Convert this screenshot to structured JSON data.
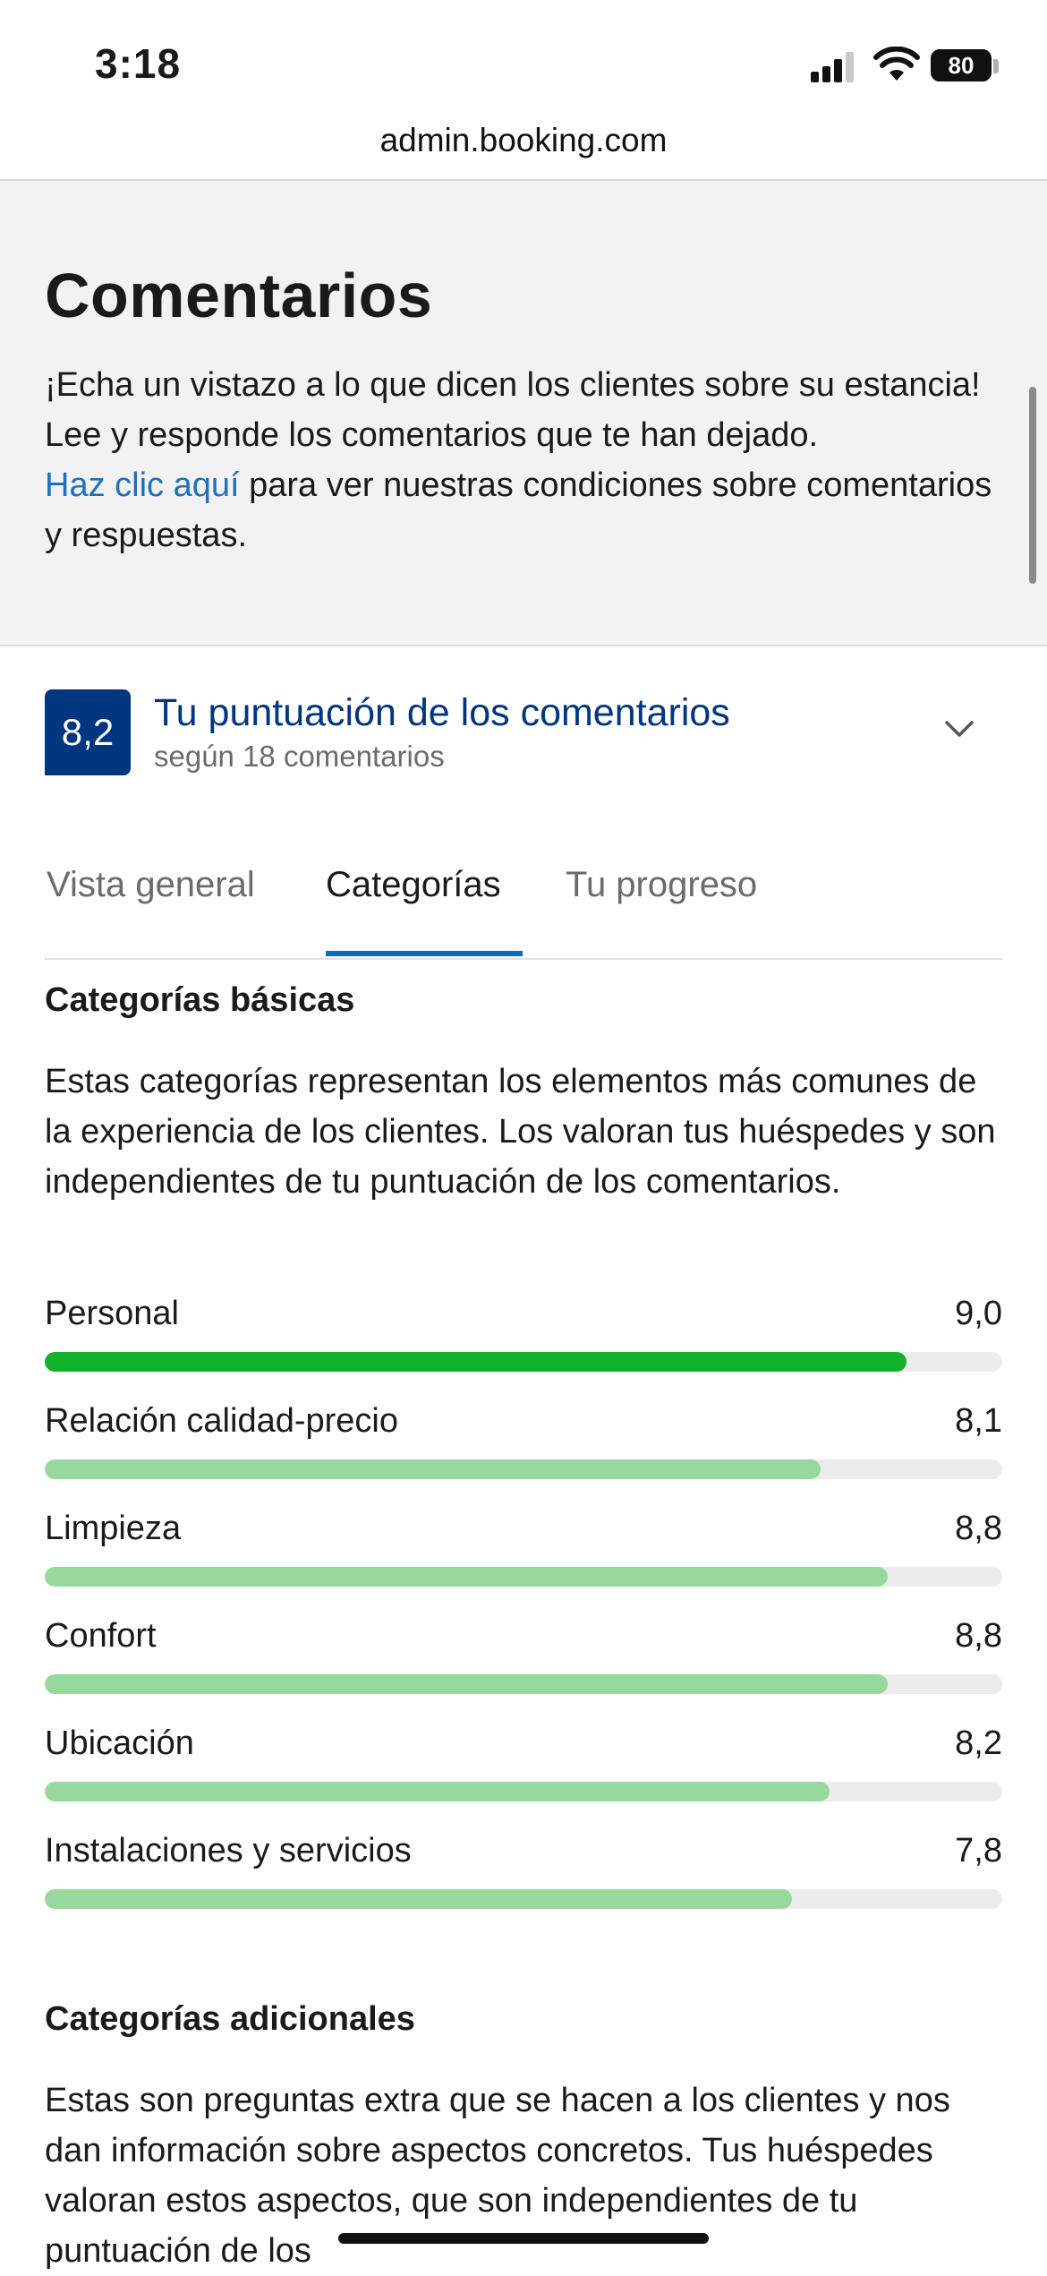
{
  "status_bar": {
    "time": "3:18",
    "battery": "80"
  },
  "browser": {
    "url": "admin.booking.com"
  },
  "header": {
    "title": "Comentarios",
    "intro": "¡Echa un vistazo a lo que dicen los clientes sobre su estancia! Lee y responde los comentarios que te han dejado.",
    "link_text": "Haz clic aquí",
    "link_suffix": " para ver nuestras condiciones sobre comentarios y respuestas."
  },
  "score": {
    "value": "8,2",
    "title": "Tu puntuación de los comentarios",
    "subtitle": "según 18 comentarios"
  },
  "tabs": [
    {
      "label": "Vista general"
    },
    {
      "label": "Categorías"
    },
    {
      "label": "Tu progreso"
    }
  ],
  "active_tab": "Categorías",
  "basic": {
    "title": "Categorías básicas",
    "description": "Estas categorías representan los elementos más comunes de la experiencia de los clientes. Los valoran tus huéspedes y son independientes de tu puntuación de los comentarios.",
    "items": [
      {
        "label": "Personal",
        "value": "9,0",
        "fill": 0.9,
        "color": "#13b02a"
      },
      {
        "label": "Relación calidad-precio",
        "value": "8,1",
        "fill": 0.81,
        "color": "#97d99d"
      },
      {
        "label": "Limpieza",
        "value": "8,8",
        "fill": 0.88,
        "color": "#97d99d"
      },
      {
        "label": "Confort",
        "value": "8,8",
        "fill": 0.88,
        "color": "#97d99d"
      },
      {
        "label": "Ubicación",
        "value": "8,2",
        "fill": 0.82,
        "color": "#97d99d"
      },
      {
        "label": "Instalaciones y servicios",
        "value": "7,8",
        "fill": 0.78,
        "color": "#97d99d"
      }
    ]
  },
  "additional": {
    "title": "Categorías adicionales",
    "description": "Estas son preguntas extra que se hacen a los clientes y nos dan información sobre aspectos concretos. Tus huéspedes valoran estos aspectos, que son independientes de tu puntuación de los"
  },
  "icons": [
    "signal-icon",
    "wifi-icon",
    "battery-icon",
    "chevron-down-icon"
  ]
}
